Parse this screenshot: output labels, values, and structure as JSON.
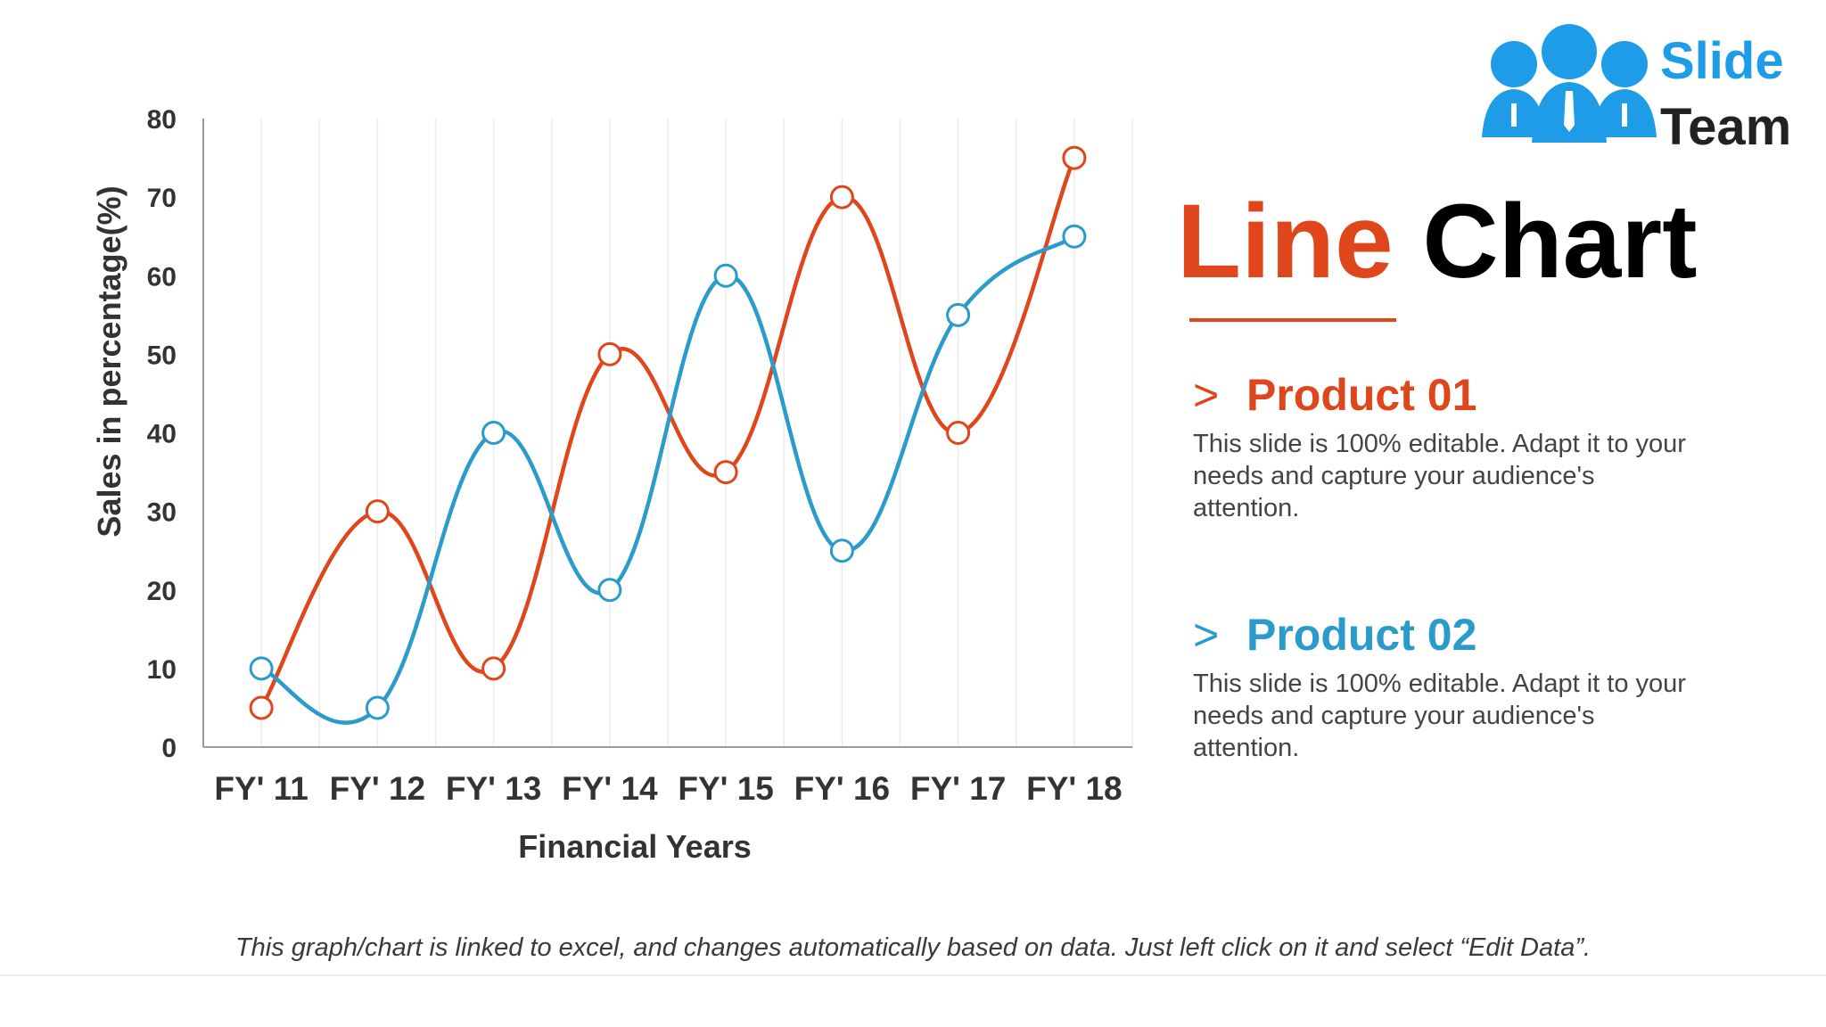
{
  "slide": {
    "title_word1": "Line",
    "title_word2": "Chart",
    "brand": {
      "line1": "Slide",
      "line2": "Team",
      "color_primary": "#1e9ce8",
      "color_text": "#222222",
      "icon": "people-group-logo"
    },
    "products": [
      {
        "chevron": ">",
        "title": "Product 01",
        "color": "#e0461b",
        "description": "This slide is 100% editable. Adapt it to your needs and capture your audience's attention."
      },
      {
        "chevron": ">",
        "title": "Product 02",
        "color": "#2b9bcb",
        "description": "This slide is 100% editable. Adapt it to your needs and capture your audience's attention."
      }
    ],
    "note": "This graph/chart is linked to excel, and changes automatically based on data. Just left click on it and select “Edit Data”."
  },
  "chart_data": {
    "type": "line",
    "smooth": true,
    "xlabel": "Financial Years",
    "ylabel": "Sales in percentage(%)",
    "categories": [
      "FY' 11",
      "FY' 12",
      "FY' 13",
      "FY' 14",
      "FY' 15",
      "FY' 16",
      "FY' 17",
      "FY' 18"
    ],
    "ylim": [
      0,
      80
    ],
    "yticks": [
      0,
      10,
      20,
      30,
      40,
      50,
      60,
      70,
      80
    ],
    "grid": "vertical",
    "series": [
      {
        "name": "Product 01",
        "color": "#e0461b",
        "values": [
          5,
          30,
          10,
          50,
          35,
          70,
          40,
          75
        ]
      },
      {
        "name": "Product 02",
        "color": "#2b9bcb",
        "values": [
          10,
          5,
          40,
          20,
          60,
          25,
          55,
          65
        ]
      }
    ]
  }
}
